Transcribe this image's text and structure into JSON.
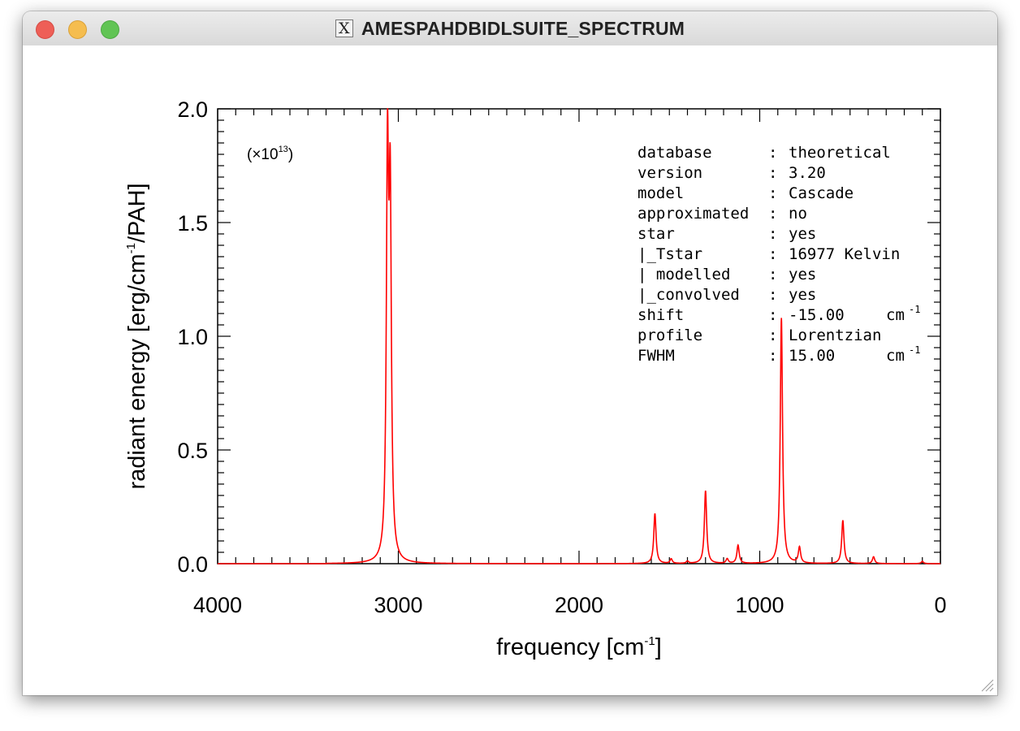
{
  "window": {
    "title": "AMESPAHDBIDLSUITE_SPECTRUM"
  },
  "chart_data": {
    "type": "line",
    "xlabel": "frequency [cm",
    "xlabel_sup": "-1",
    "xlabel_tail": "]",
    "ylabel": "radiant energy [erg/cm",
    "ylabel_sup": "-1",
    "ylabel_tail": "/PAH]",
    "xlim": [
      4000,
      0
    ],
    "ylim": [
      0,
      2.0
    ],
    "xticks": [
      "4000",
      "3000",
      "2000",
      "1000",
      "0"
    ],
    "yticks": [
      "0.0",
      "0.5",
      "1.0",
      "1.5",
      "2.0"
    ],
    "scale_note": "(×10",
    "scale_note_sup": "13",
    "scale_note_tail": ")",
    "grid": false,
    "series": [
      {
        "color": "#ff0000",
        "peaks": [
          {
            "x": 3060,
            "y": 1.7
          },
          {
            "x": 3045,
            "y": 1.5
          },
          {
            "x": 1580,
            "y": 0.22
          },
          {
            "x": 1490,
            "y": 0.02
          },
          {
            "x": 1400,
            "y": 0.01
          },
          {
            "x": 1300,
            "y": 0.32
          },
          {
            "x": 1180,
            "y": 0.02
          },
          {
            "x": 1120,
            "y": 0.08
          },
          {
            "x": 880,
            "y": 1.08
          },
          {
            "x": 780,
            "y": 0.07
          },
          {
            "x": 540,
            "y": 0.19
          },
          {
            "x": 370,
            "y": 0.03
          },
          {
            "x": 100,
            "y": 0.01
          }
        ],
        "fwhm": 15.0
      }
    ],
    "info": [
      {
        "key": "database",
        "value": "theoretical"
      },
      {
        "key": "version",
        "value": "3.20"
      },
      {
        "key": "model",
        "value": "Cascade"
      },
      {
        "key": "approximated",
        "value": "no"
      },
      {
        "key": "star",
        "value": "yes"
      },
      {
        "key": "|_Tstar",
        "value": "16977 Kelvin"
      },
      {
        "key": "| modelled",
        "value": "yes"
      },
      {
        "key": "|_convolved",
        "value": "yes"
      },
      {
        "key": "shift",
        "value": "-15.00",
        "unit": "cm",
        "unit_sup": "-1"
      },
      {
        "key": "profile",
        "value": "Lorentzian"
      },
      {
        "key": "FWHM",
        "value": "15.00",
        "unit": "cm",
        "unit_sup": "-1"
      }
    ]
  }
}
